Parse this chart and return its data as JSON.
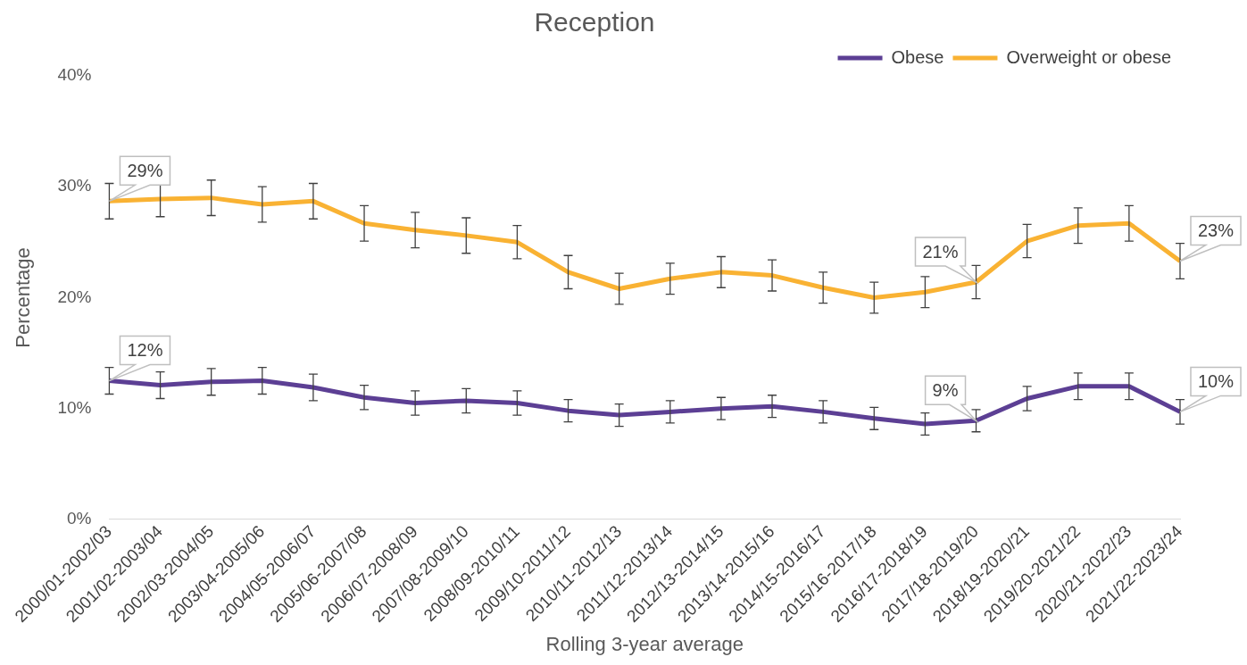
{
  "chart_data": {
    "type": "line",
    "title": "Reception",
    "xlabel": "Rolling 3-year average",
    "ylabel": "Percentage",
    "categories": [
      "2000/01-2002/03",
      "2001/02-2003/04",
      "2002/03-2004/05",
      "2003/04-2005/06",
      "2004/05-2006/07",
      "2005/06-2007/08",
      "2006/07-2008/09",
      "2007/08-2009/10",
      "2008/09-2010/11",
      "2009/10-2011/12",
      "2010/11-2012/13",
      "2011/12-2013/14",
      "2012/13-2014/15",
      "2013/14-2015/16",
      "2014/15-2016/17",
      "2015/16-2017/18",
      "2016/17-2018/19",
      "2017/18-2019/20",
      "2018/19-2020/21",
      "2019/20-2021/22",
      "2020/21-2022/23",
      "2021/22-2023/24"
    ],
    "series": [
      {
        "name": "Obese",
        "color": "#5c3f94",
        "values": [
          12.5,
          12.1,
          12.4,
          12.5,
          11.9,
          11.0,
          10.5,
          10.7,
          10.5,
          9.8,
          9.4,
          9.7,
          10.0,
          10.2,
          9.7,
          9.1,
          8.6,
          8.9,
          10.9,
          12.0,
          12.0,
          9.7
        ],
        "errors": [
          1.2,
          1.2,
          1.2,
          1.2,
          1.2,
          1.1,
          1.1,
          1.1,
          1.1,
          1.0,
          1.0,
          1.0,
          1.0,
          1.0,
          1.0,
          1.0,
          1.0,
          1.0,
          1.1,
          1.2,
          1.2,
          1.1
        ],
        "value_labels": [
          "12%",
          null,
          null,
          null,
          null,
          null,
          null,
          null,
          null,
          null,
          null,
          null,
          null,
          null,
          null,
          null,
          null,
          "9%",
          null,
          null,
          null,
          "10%"
        ]
      },
      {
        "name": "Overweight or obese",
        "color": "#f9b233",
        "values": [
          28.7,
          28.9,
          29.0,
          28.4,
          28.7,
          26.7,
          26.1,
          25.6,
          25.0,
          22.3,
          20.8,
          21.7,
          22.3,
          22.0,
          20.9,
          20.0,
          20.5,
          21.4,
          25.1,
          26.5,
          26.7,
          23.3
        ],
        "errors": [
          1.6,
          1.6,
          1.6,
          1.6,
          1.6,
          1.6,
          1.6,
          1.6,
          1.5,
          1.5,
          1.4,
          1.4,
          1.4,
          1.4,
          1.4,
          1.4,
          1.4,
          1.5,
          1.5,
          1.6,
          1.6,
          1.6
        ],
        "value_labels": [
          "29%",
          null,
          null,
          null,
          null,
          null,
          null,
          null,
          null,
          null,
          null,
          null,
          null,
          null,
          null,
          null,
          null,
          "21%",
          null,
          null,
          null,
          "23%"
        ]
      }
    ],
    "ylim": [
      0,
      40
    ],
    "yticks": [
      {
        "value": 0,
        "label": "0%"
      },
      {
        "value": 10,
        "label": "10%"
      },
      {
        "value": 20,
        "label": "20%"
      },
      {
        "value": 30,
        "label": "30%"
      },
      {
        "value": 40,
        "label": "40%"
      }
    ],
    "grid": false,
    "legend": "top right",
    "marker": "none",
    "line_style": "solid"
  }
}
